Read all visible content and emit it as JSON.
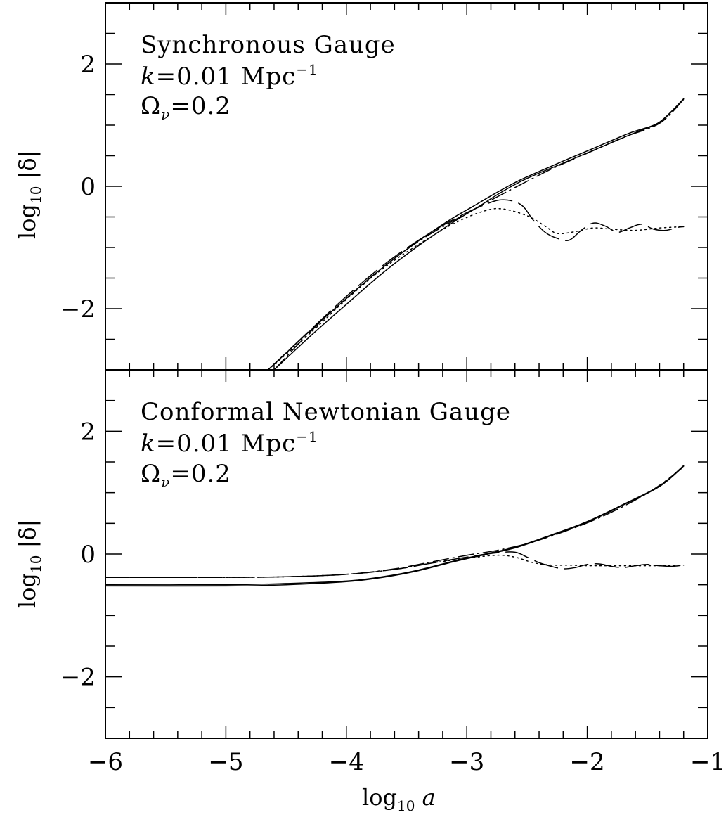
{
  "chart_data": [
    {
      "type": "line",
      "panel": "top",
      "annotations": [
        "Synchronous Gauge",
        "k",
        "=0.01 Mpc",
        "−1",
        "Ω",
        "ν",
        "=0.2"
      ],
      "ylabel": {
        "base": "log",
        "sub": "10",
        "rest": " |δ|"
      },
      "xlabel": "",
      "xlim": [
        -6,
        -1
      ],
      "ylim": [
        -3,
        3
      ],
      "yticks": [
        {
          "value": 2,
          "label": "2"
        },
        {
          "value": 0,
          "label": "0"
        },
        {
          "value": -2,
          "label": "−2"
        }
      ],
      "grid": false,
      "series": [
        {
          "style": "solid",
          "color": "#000000",
          "points": [
            [
              -4.6,
              -3.0
            ],
            [
              -4.3,
              -2.45
            ],
            [
              -4.0,
              -1.93
            ],
            [
              -3.7,
              -1.42
            ],
            [
              -3.4,
              -0.97
            ],
            [
              -3.1,
              -0.57
            ],
            [
              -2.9,
              -0.33
            ],
            [
              -2.7,
              -0.08
            ],
            [
              -2.5,
              0.13
            ],
            [
              -2.2,
              0.38
            ],
            [
              -1.9,
              0.63
            ],
            [
              -1.6,
              0.88
            ],
            [
              -1.4,
              1.05
            ],
            [
              -1.2,
              1.43
            ]
          ]
        },
        {
          "style": "solid",
          "color": "#000000",
          "points": [
            [
              -4.65,
              -3.0
            ],
            [
              -4.35,
              -2.45
            ],
            [
              -4.05,
              -1.92
            ],
            [
              -3.75,
              -1.41
            ],
            [
              -3.45,
              -0.96
            ],
            [
              -3.15,
              -0.56
            ],
            [
              -2.95,
              -0.33
            ],
            [
              -2.75,
              -0.1
            ],
            [
              -2.55,
              0.11
            ],
            [
              -2.25,
              0.37
            ],
            [
              -1.95,
              0.62
            ],
            [
              -1.65,
              0.87
            ],
            [
              -1.4,
              1.05
            ],
            [
              -1.2,
              1.43
            ]
          ]
        },
        {
          "style": "long-dash",
          "color": "#000000",
          "points": [
            [
              -4.65,
              -3.0
            ],
            [
              -4.3,
              -2.35
            ],
            [
              -4.0,
              -1.8
            ],
            [
              -3.7,
              -1.3
            ],
            [
              -3.4,
              -0.88
            ],
            [
              -3.1,
              -0.53
            ],
            [
              -2.85,
              -0.3
            ],
            [
              -2.7,
              -0.22
            ],
            [
              -2.55,
              -0.3
            ],
            [
              -2.45,
              -0.55
            ],
            [
              -2.35,
              -0.75
            ],
            [
              -2.25,
              -0.85
            ],
            [
              -2.15,
              -0.88
            ],
            [
              -2.05,
              -0.72
            ],
            [
              -1.95,
              -0.6
            ],
            [
              -1.85,
              -0.65
            ],
            [
              -1.75,
              -0.75
            ],
            [
              -1.65,
              -0.68
            ],
            [
              -1.55,
              -0.62
            ],
            [
              -1.45,
              -0.7
            ],
            [
              -1.35,
              -0.72
            ],
            [
              -1.25,
              -0.67
            ],
            [
              -1.2,
              -0.66
            ]
          ]
        },
        {
          "style": "dotted",
          "color": "#000000",
          "points": [
            [
              -4.65,
              -3.0
            ],
            [
              -4.3,
              -2.4
            ],
            [
              -4.0,
              -1.85
            ],
            [
              -3.7,
              -1.35
            ],
            [
              -3.4,
              -0.95
            ],
            [
              -3.1,
              -0.6
            ],
            [
              -2.85,
              -0.4
            ],
            [
              -2.7,
              -0.37
            ],
            [
              -2.5,
              -0.48
            ],
            [
              -2.35,
              -0.65
            ],
            [
              -2.25,
              -0.77
            ],
            [
              -2.1,
              -0.74
            ],
            [
              -1.95,
              -0.68
            ],
            [
              -1.8,
              -0.7
            ],
            [
              -1.6,
              -0.72
            ],
            [
              -1.4,
              -0.68
            ],
            [
              -1.2,
              -0.66
            ]
          ]
        },
        {
          "style": "dash-dot",
          "color": "#000000",
          "points": [
            [
              -4.6,
              -3.0
            ],
            [
              -4.3,
              -2.38
            ],
            [
              -4.0,
              -1.83
            ],
            [
              -3.7,
              -1.33
            ],
            [
              -3.4,
              -0.9
            ],
            [
              -3.1,
              -0.55
            ],
            [
              -2.85,
              -0.28
            ],
            [
              -2.6,
              -0.02
            ],
            [
              -2.3,
              0.28
            ],
            [
              -2.0,
              0.54
            ],
            [
              -1.7,
              0.8
            ],
            [
              -1.4,
              1.03
            ],
            [
              -1.2,
              1.42
            ]
          ]
        }
      ]
    },
    {
      "type": "line",
      "panel": "bottom",
      "annotations": [
        "Conformal Newtonian Gauge",
        "k",
        "=0.01 Mpc",
        "−1",
        "Ω",
        "ν",
        "=0.2"
      ],
      "ylabel": {
        "base": "log",
        "sub": "10",
        "rest": " |δ|"
      },
      "xlabel": {
        "base": "log",
        "sub": "10",
        "rest": " a"
      },
      "xlim": [
        -6,
        -1
      ],
      "ylim": [
        -3,
        3
      ],
      "xticks": [
        {
          "value": -6,
          "label": "−6"
        },
        {
          "value": -5,
          "label": "−5"
        },
        {
          "value": -4,
          "label": "−4"
        },
        {
          "value": -3,
          "label": "−3"
        },
        {
          "value": -2,
          "label": "−2"
        },
        {
          "value": -1,
          "label": "−1"
        }
      ],
      "yticks": [
        {
          "value": 2,
          "label": "2"
        },
        {
          "value": 0,
          "label": "0"
        },
        {
          "value": -2,
          "label": "−2"
        }
      ],
      "grid": false,
      "series": [
        {
          "style": "solid",
          "color": "#000000",
          "points": [
            [
              -6.0,
              -0.52
            ],
            [
              -5.0,
              -0.52
            ],
            [
              -4.5,
              -0.5
            ],
            [
              -4.0,
              -0.45
            ],
            [
              -3.7,
              -0.38
            ],
            [
              -3.4,
              -0.27
            ],
            [
              -3.1,
              -0.12
            ],
            [
              -2.85,
              -0.01
            ],
            [
              -2.6,
              0.1
            ],
            [
              -2.3,
              0.3
            ],
            [
              -2.0,
              0.52
            ],
            [
              -1.7,
              0.8
            ],
            [
              -1.4,
              1.1
            ],
            [
              -1.2,
              1.43
            ]
          ]
        },
        {
          "style": "solid",
          "color": "#000000",
          "points": [
            [
              -6.0,
              -0.5
            ],
            [
              -5.0,
              -0.5
            ],
            [
              -4.5,
              -0.48
            ],
            [
              -4.0,
              -0.44
            ],
            [
              -3.7,
              -0.37
            ],
            [
              -3.4,
              -0.26
            ],
            [
              -3.1,
              -0.11
            ],
            [
              -2.85,
              0.0
            ],
            [
              -2.6,
              0.11
            ],
            [
              -2.3,
              0.31
            ],
            [
              -2.0,
              0.53
            ],
            [
              -1.7,
              0.81
            ],
            [
              -1.4,
              1.11
            ],
            [
              -1.2,
              1.44
            ]
          ]
        },
        {
          "style": "long-dash",
          "color": "#000000",
          "points": [
            [
              -6.0,
              -0.38
            ],
            [
              -5.0,
              -0.38
            ],
            [
              -4.5,
              -0.37
            ],
            [
              -4.0,
              -0.33
            ],
            [
              -3.6,
              -0.25
            ],
            [
              -3.3,
              -0.15
            ],
            [
              -3.0,
              -0.05
            ],
            [
              -2.75,
              0.02
            ],
            [
              -2.6,
              0.03
            ],
            [
              -2.5,
              -0.05
            ],
            [
              -2.4,
              -0.14
            ],
            [
              -2.3,
              -0.2
            ],
            [
              -2.2,
              -0.24
            ],
            [
              -2.1,
              -0.22
            ],
            [
              -2.0,
              -0.17
            ],
            [
              -1.9,
              -0.16
            ],
            [
              -1.8,
              -0.2
            ],
            [
              -1.7,
              -0.22
            ],
            [
              -1.6,
              -0.19
            ],
            [
              -1.5,
              -0.17
            ],
            [
              -1.4,
              -0.19
            ],
            [
              -1.3,
              -0.2
            ],
            [
              -1.2,
              -0.18
            ]
          ]
        },
        {
          "style": "dotted",
          "color": "#000000",
          "points": [
            [
              -6.0,
              -0.38
            ],
            [
              -5.0,
              -0.38
            ],
            [
              -4.5,
              -0.37
            ],
            [
              -4.0,
              -0.33
            ],
            [
              -3.6,
              -0.25
            ],
            [
              -3.3,
              -0.15
            ],
            [
              -3.0,
              -0.07
            ],
            [
              -2.75,
              -0.02
            ],
            [
              -2.6,
              -0.05
            ],
            [
              -2.45,
              -0.14
            ],
            [
              -2.3,
              -0.18
            ],
            [
              -2.15,
              -0.18
            ],
            [
              -2.0,
              -0.19
            ],
            [
              -1.8,
              -0.19
            ],
            [
              -1.6,
              -0.19
            ],
            [
              -1.4,
              -0.19
            ],
            [
              -1.2,
              -0.18
            ]
          ]
        },
        {
          "style": "dash-dot",
          "color": "#000000",
          "points": [
            [
              -6.0,
              -0.38
            ],
            [
              -5.0,
              -0.38
            ],
            [
              -4.5,
              -0.37
            ],
            [
              -4.0,
              -0.33
            ],
            [
              -3.6,
              -0.24
            ],
            [
              -3.3,
              -0.13
            ],
            [
              -3.0,
              -0.02
            ],
            [
              -2.75,
              0.06
            ],
            [
              -2.5,
              0.17
            ],
            [
              -2.2,
              0.36
            ],
            [
              -1.9,
              0.59
            ],
            [
              -1.6,
              0.88
            ],
            [
              -1.4,
              1.12
            ],
            [
              -1.2,
              1.42
            ]
          ]
        }
      ]
    }
  ]
}
